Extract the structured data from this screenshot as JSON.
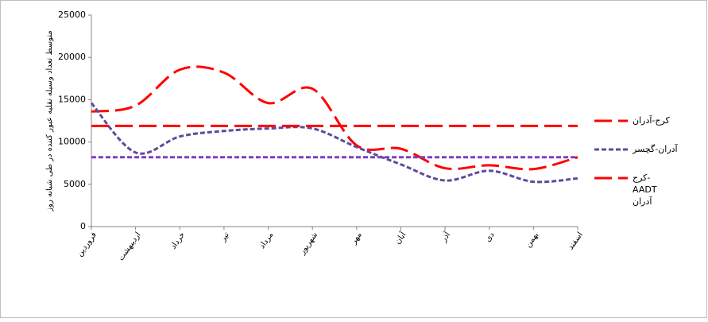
{
  "chart_data": {
    "type": "line",
    "ylabel": "متوسط تعداد وسیله نقلیه عبور کننده در طی شبانه روز",
    "categories": [
      "فروردین",
      "اردیبهشت",
      "خرداد",
      "تیر",
      "مرداد",
      "شهریور",
      "مهر",
      "آبان",
      "آذر",
      "دی",
      "بهمن",
      "اسفند"
    ],
    "series": [
      {
        "name": "کرج-آدران",
        "color": "#ff0000",
        "dash": "long",
        "values": [
          13600,
          14300,
          18550,
          18200,
          14600,
          16300,
          9600,
          9200,
          6900,
          7250,
          6800,
          8200
        ]
      },
      {
        "name": "آدران-گچسر",
        "color": "#604a9b",
        "dash": "short",
        "values": [
          14600,
          8750,
          10650,
          11300,
          11600,
          11600,
          9400,
          7350,
          5450,
          6600,
          5300,
          5700
        ]
      },
      {
        "name": "کرج- AADT آدران",
        "color": "#ff0000",
        "dash": "long",
        "values": [
          11900,
          11900,
          11900,
          11900,
          11900,
          11900,
          11900,
          11900,
          11900,
          11900,
          11900,
          11900
        ]
      },
      {
        "color": "#7f3fbf",
        "dash": "short",
        "values": [
          8200,
          8200,
          8200,
          8200,
          8200,
          8200,
          8200,
          8200,
          8200,
          8200,
          8200,
          8200
        ]
      }
    ],
    "ylim": [
      0,
      25000
    ],
    "yticks": [
      0,
      5000,
      10000,
      15000,
      20000,
      25000
    ],
    "legend": "right"
  }
}
